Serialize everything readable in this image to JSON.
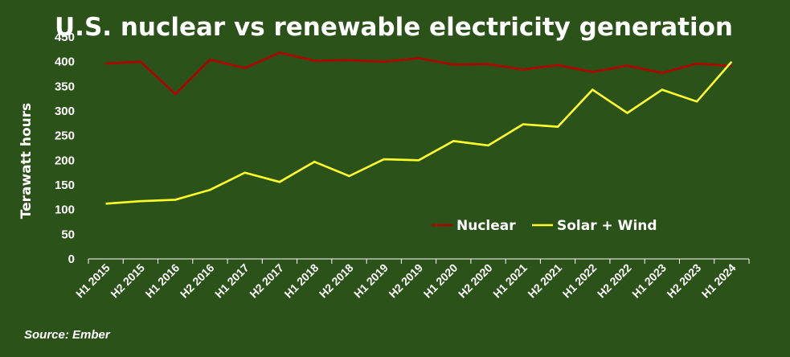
{
  "chart_data": {
    "type": "line",
    "title": "U.S. nuclear vs renewable electricity generation",
    "ylabel": "Terawatt hours",
    "xlabel": "",
    "ylim": [
      0,
      450
    ],
    "yticks": [
      0,
      50,
      100,
      150,
      200,
      250,
      300,
      350,
      400,
      450
    ],
    "x": [
      "H1 2015",
      "H2 2015",
      "H1 2016",
      "H2 2016",
      "H1 2017",
      "H2 2017",
      "H1 2018",
      "H2 2018",
      "H1 2019",
      "H2 2019",
      "H1 2020",
      "H2 2020",
      "H1 2021",
      "H2 2021",
      "H1 2022",
      "H2 2022",
      "H1 2023",
      "H2 2023",
      "H1 2024"
    ],
    "series": [
      {
        "name": "Nuclear",
        "color": "#b30000",
        "values": [
          396,
          400,
          334,
          404,
          387,
          418,
          402,
          403,
          400,
          407,
          394,
          395,
          384,
          393,
          379,
          392,
          377,
          396,
          391
        ]
      },
      {
        "name": "Solar + Wind",
        "color": "#ffff2a",
        "values": [
          112,
          117,
          120,
          140,
          175,
          156,
          197,
          168,
          202,
          200,
          239,
          230,
          273,
          268,
          343,
          296,
          343,
          319,
          400
        ]
      }
    ],
    "grid": false,
    "legend": "bottom-right",
    "source": "Source: Ember",
    "colors": {
      "background": "#2b5219",
      "text": "#ffffff",
      "axis": "#ffffff"
    }
  }
}
